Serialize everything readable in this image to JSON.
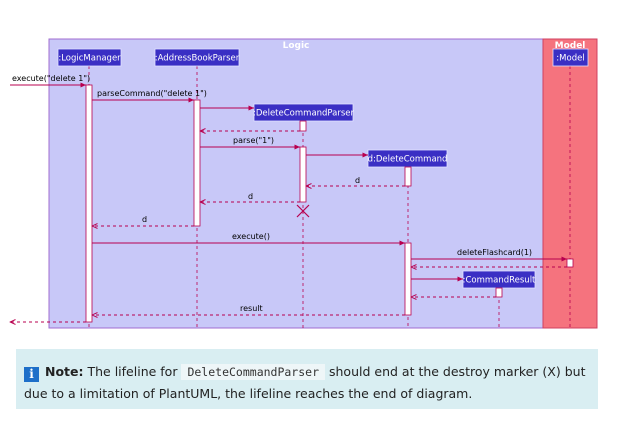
{
  "diagram": {
    "groups": {
      "logic": "Logic",
      "model": "Model"
    },
    "participants": {
      "logic_manager": ":LogicManager",
      "address_book_parser": ":AddressBookParser",
      "delete_command_parser": ":DeleteCommandParser",
      "delete_command": "d:DeleteCommand",
      "command_result": ":CommandResult",
      "model": ":Model"
    },
    "messages": {
      "execute_call": "execute(\"delete 1\")",
      "parse_command": "parseCommand(\"delete 1\")",
      "parse": "parse(\"1\")",
      "return_d_1": "d",
      "return_d_2": "d",
      "return_d_3": "d",
      "execute": "execute()",
      "delete_flashcard": "deleteFlashcard(1)",
      "result": "result"
    },
    "colors": {
      "logic_bg": "#c8c8f8",
      "model_bg": "#f5737e",
      "participant": "#3a2fc4",
      "arrow": "#b8004f"
    }
  },
  "note": {
    "icon": "info-icon",
    "label": "Note:",
    "text_before": "The lifeline for",
    "code": "DeleteCommandParser",
    "text_after": "should end at the destroy marker (X) but due to a limitation of PlantUML, the lifeline reaches the end of diagram."
  }
}
